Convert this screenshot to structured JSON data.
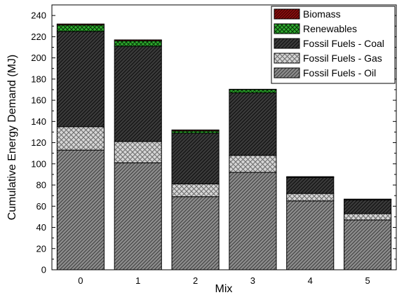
{
  "chart_data": {
    "type": "bar",
    "stacked": true,
    "title": "",
    "xlabel": "Mix",
    "ylabel": "Cumulative Energy Demand (MJ)",
    "categories": [
      "0",
      "1",
      "2",
      "3",
      "4",
      "5"
    ],
    "ylim": [
      0,
      250
    ],
    "yticks": [
      0,
      20,
      40,
      60,
      80,
      100,
      120,
      140,
      160,
      180,
      200,
      220,
      240
    ],
    "legend_position": "top-right",
    "series": [
      {
        "name": "Fossil Fuels - Oil",
        "values": [
          113,
          101,
          69,
          92,
          65,
          47
        ],
        "color": "#8a8a8a"
      },
      {
        "name": "Fossil Fuels - Gas",
        "values": [
          22,
          20,
          12,
          16,
          7,
          6
        ],
        "color": "#d0d0d0"
      },
      {
        "name": "Fossil Fuels - Coal",
        "values": [
          90,
          90,
          48,
          59,
          15,
          13
        ],
        "color": "#333333"
      },
      {
        "name": "Renewables",
        "values": [
          6,
          5,
          2,
          3,
          0.5,
          0.3
        ],
        "color": "#2aa02a"
      },
      {
        "name": "Biomass",
        "values": [
          1,
          1,
          1,
          0.3,
          0.3,
          0.2
        ],
        "color": "#7a0a0a"
      }
    ],
    "legend_order": [
      "Biomass",
      "Renewables",
      "Fossil Fuels - Coal",
      "Fossil Fuels - Gas",
      "Fossil Fuels - Oil"
    ]
  }
}
